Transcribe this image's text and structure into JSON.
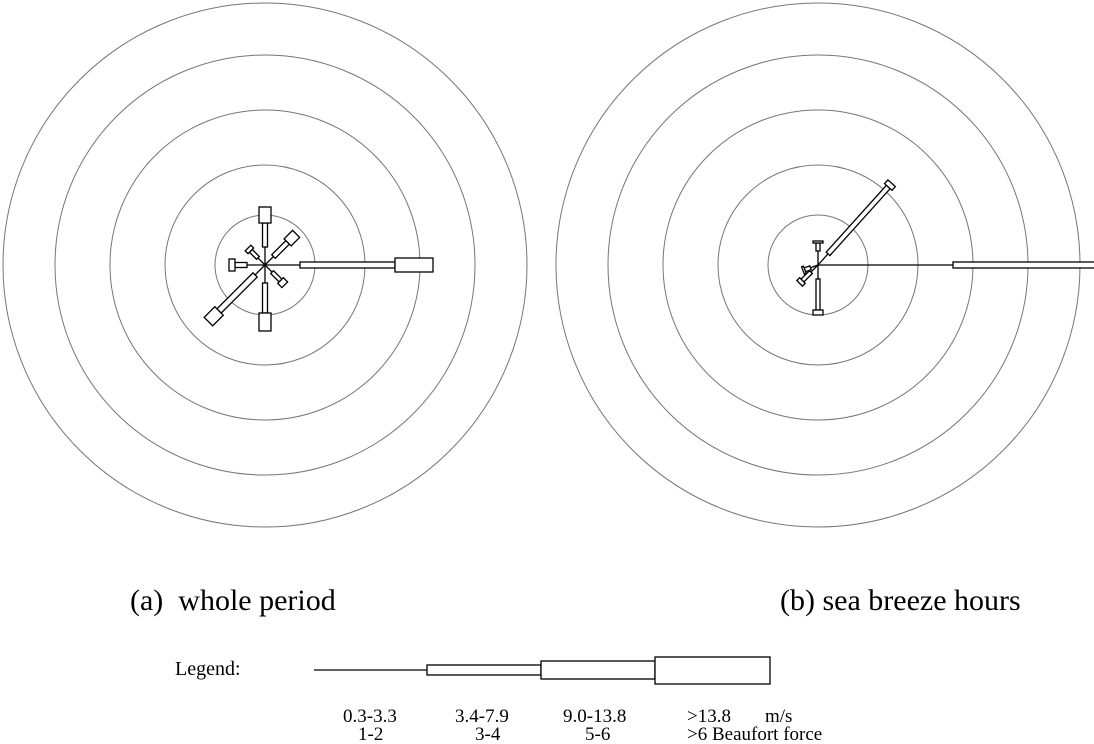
{
  "panels": [
    {
      "caption": "(a)  whole period"
    },
    {
      "caption": "(b) sea breeze hours"
    }
  ],
  "legend": {
    "title": "Legend:",
    "speed_labels": [
      "0.3-3.3",
      "3.4-7.9",
      "9.0-13.8",
      ">13.8"
    ],
    "speed_unit": "m/s",
    "beaufort_labels": [
      "1-2",
      "3-4",
      "5-6",
      ">6 Beaufort force"
    ]
  }
}
